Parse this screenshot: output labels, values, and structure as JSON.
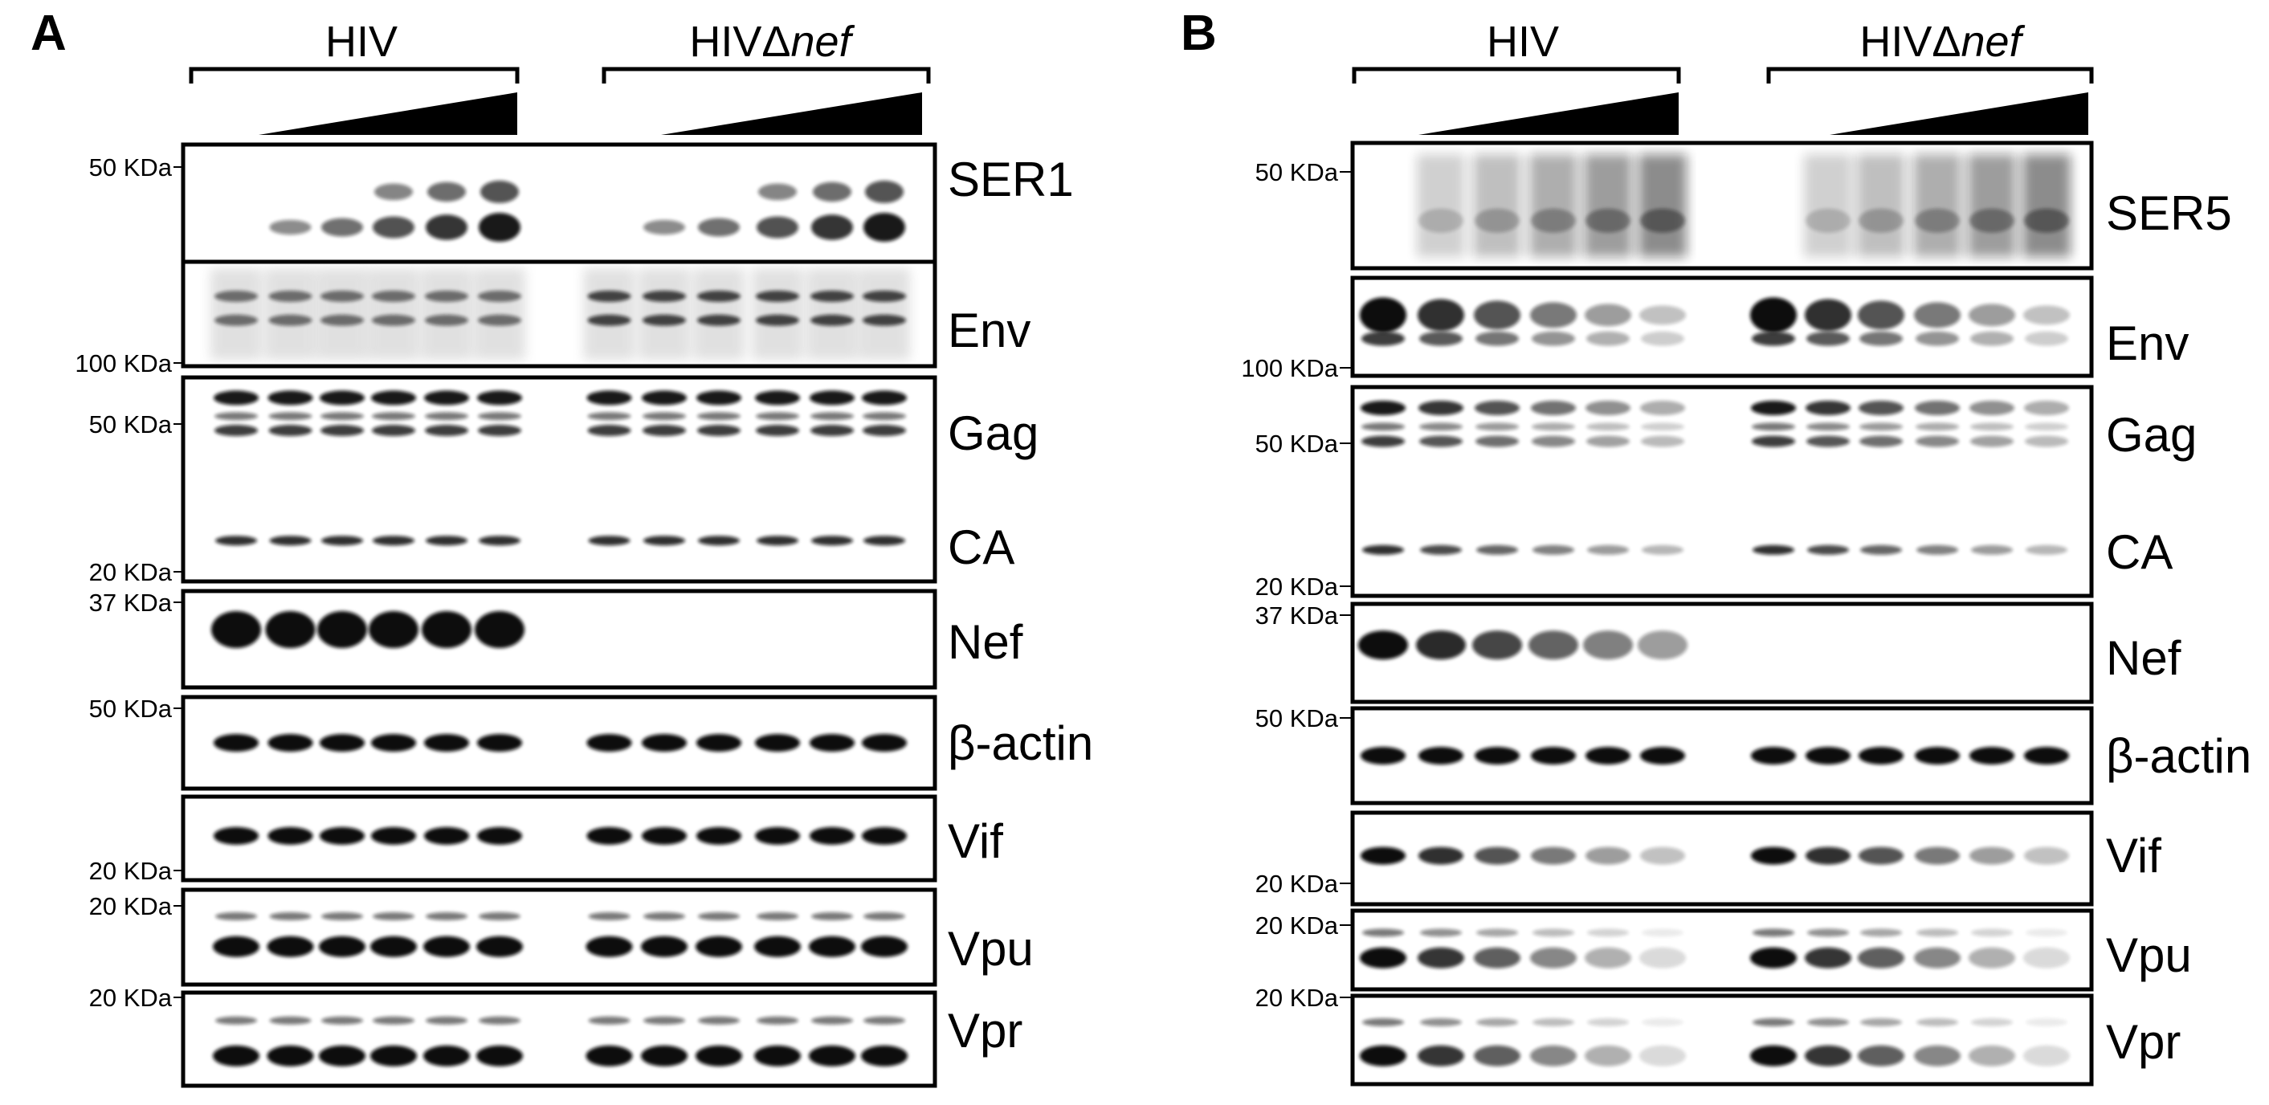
{
  "panels": [
    {
      "letter": "A",
      "groups": [
        {
          "label_main": "HIV",
          "label_italic": ""
        },
        {
          "label_main": "HIVΔ",
          "label_italic": "nef"
        }
      ],
      "blots": [
        {
          "protein": "SER1",
          "marker": "50 KDa",
          "kind": "smear-ser1"
        },
        {
          "protein": "Env",
          "marker": "100 KDa",
          "kind": "env"
        },
        {
          "protein": "Gag",
          "marker": "50 KDa",
          "marker2": "20 KDa",
          "second_protein": "CA",
          "kind": "gag"
        },
        {
          "protein": "Nef",
          "marker": "37 KDa",
          "kind": "nef"
        },
        {
          "protein": "β-actin",
          "marker": "50 KDa",
          "kind": "single"
        },
        {
          "protein": "Vif",
          "marker": "20 KDa",
          "kind": "single"
        },
        {
          "protein": "Vpu",
          "marker": "20 KDa",
          "kind": "double"
        },
        {
          "protein": "Vpr",
          "marker": "20 KDa",
          "kind": "double"
        }
      ]
    },
    {
      "letter": "B",
      "groups": [
        {
          "label_main": "HIV",
          "label_italic": ""
        },
        {
          "label_main": "HIVΔ",
          "label_italic": "nef"
        }
      ],
      "blots": [
        {
          "protein": "SER5",
          "marker": "50 KDa",
          "kind": "smear-ser5"
        },
        {
          "protein": "Env",
          "marker": "100 KDa",
          "kind": "env"
        },
        {
          "protein": "Gag",
          "marker": "50 KDa",
          "marker2": "20 KDa",
          "second_protein": "CA",
          "kind": "gag"
        },
        {
          "protein": "Nef",
          "marker": "37 KDa",
          "kind": "nef"
        },
        {
          "protein": "β-actin",
          "marker": "50 KDa",
          "kind": "single"
        },
        {
          "protein": "Vif",
          "marker": "20 KDa",
          "kind": "single"
        },
        {
          "protein": "Vpu",
          "marker": "20 KDa",
          "kind": "double"
        },
        {
          "protein": "Vpr",
          "marker": "20 KDa",
          "kind": "double"
        }
      ]
    }
  ],
  "colors": {
    "band": "#111111",
    "background": "#ffffff",
    "frame": "#000000"
  }
}
